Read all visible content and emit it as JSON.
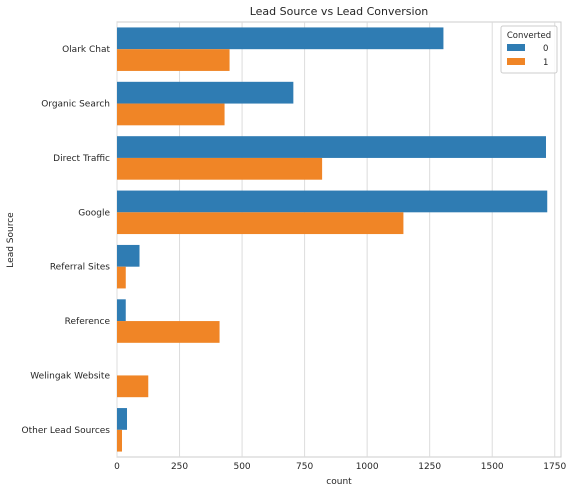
{
  "chart_data": {
    "type": "bar",
    "orientation": "horizontal",
    "title": "Lead Source vs Lead Conversion",
    "xlabel": "count",
    "ylabel": "Lead Source",
    "xlim": [
      0,
      1775
    ],
    "xticks": [
      0,
      250,
      500,
      750,
      1000,
      1250,
      1500,
      1750
    ],
    "grid": "vertical",
    "categories": [
      "Olark Chat",
      "Organic Search",
      "Direct Traffic",
      "Google",
      "Referral Sites",
      "Reference",
      "Welingak Website",
      "Other Lead Sources"
    ],
    "legend": {
      "title": "Converted",
      "position": "top-right"
    },
    "series": [
      {
        "name": "0",
        "color": "#2f7cb3",
        "values": [
          1305,
          705,
          1715,
          1720,
          90,
          35,
          0,
          40
        ]
      },
      {
        "name": "1",
        "color": "#f08526",
        "values": [
          450,
          430,
          820,
          1145,
          35,
          410,
          125,
          20
        ]
      }
    ]
  }
}
